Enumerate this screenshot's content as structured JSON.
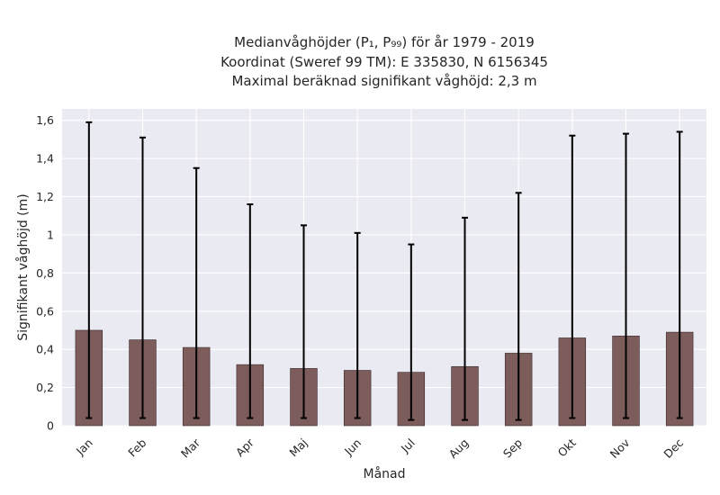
{
  "chart_data": {
    "type": "bar",
    "title_lines": [
      "Medianvåghöjder (P₁, P₉₉) för år 1979 - 2019",
      "Koordinat (Sweref 99 TM): E 335830, N 6156345",
      "Maximal beräknad signifikant våghöjd: 2,3 m"
    ],
    "xlabel": "Månad",
    "ylabel": "Signifikant våghöjd (m)",
    "ylim": [
      0,
      1.66
    ],
    "yticks": [
      0,
      0.2,
      0.4,
      0.6,
      0.8,
      1,
      1.2,
      1.4,
      1.6
    ],
    "ytick_labels": [
      "0",
      "0,2",
      "0,4",
      "0,6",
      "0,8",
      "1",
      "1,2",
      "1,4",
      "1,6"
    ],
    "categories": [
      "Jan",
      "Feb",
      "Mar",
      "Apr",
      "Maj",
      "Jun",
      "Jul",
      "Aug",
      "Sep",
      "Okt",
      "Nov",
      "Dec"
    ],
    "values": [
      0.5,
      0.45,
      0.41,
      0.32,
      0.3,
      0.29,
      0.28,
      0.31,
      0.38,
      0.46,
      0.47,
      0.49
    ],
    "p1": [
      0.04,
      0.04,
      0.04,
      0.04,
      0.04,
      0.04,
      0.03,
      0.03,
      0.03,
      0.04,
      0.04,
      0.04
    ],
    "p99": [
      1.59,
      1.51,
      1.35,
      1.16,
      1.05,
      1.01,
      0.95,
      1.09,
      1.22,
      1.52,
      1.53,
      1.54
    ],
    "grid": true,
    "colors": {
      "bar": "#7d5c5c",
      "bar_edge": "#3a2a2a",
      "error_bar": "#000000",
      "plot_bg": "#eaeaf2",
      "grid": "#ffffff"
    }
  }
}
